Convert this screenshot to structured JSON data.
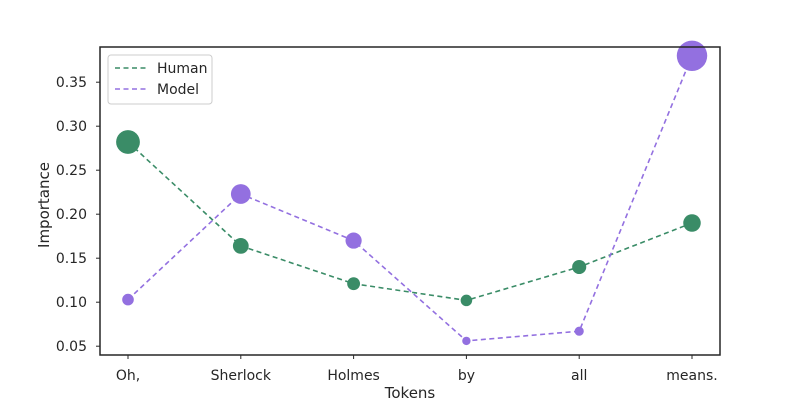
{
  "chart_data": {
    "type": "line",
    "xlabel": "Tokens",
    "ylabel": "Importance",
    "categories": [
      "Oh,",
      "Sherlock",
      "Holmes",
      "by",
      "all",
      "means."
    ],
    "ylim": [
      0.04,
      0.39
    ],
    "yticks": [
      0.05,
      0.1,
      0.15,
      0.2,
      0.25,
      0.3,
      0.35
    ],
    "ytick_labels": [
      "0.05",
      "0.10",
      "0.15",
      "0.20",
      "0.25",
      "0.30",
      "0.35"
    ],
    "grid": false,
    "legend_position": "top-left",
    "marker_size_encodes": "importance",
    "series": [
      {
        "name": "Human",
        "color": "#3a8c67",
        "line_style": "dashed",
        "values": [
          0.282,
          0.164,
          0.121,
          0.102,
          0.14,
          0.19
        ]
      },
      {
        "name": "Model",
        "color": "#9370e0",
        "line_style": "dashed",
        "values": [
          0.103,
          0.223,
          0.17,
          0.056,
          0.067,
          0.38
        ]
      }
    ]
  }
}
